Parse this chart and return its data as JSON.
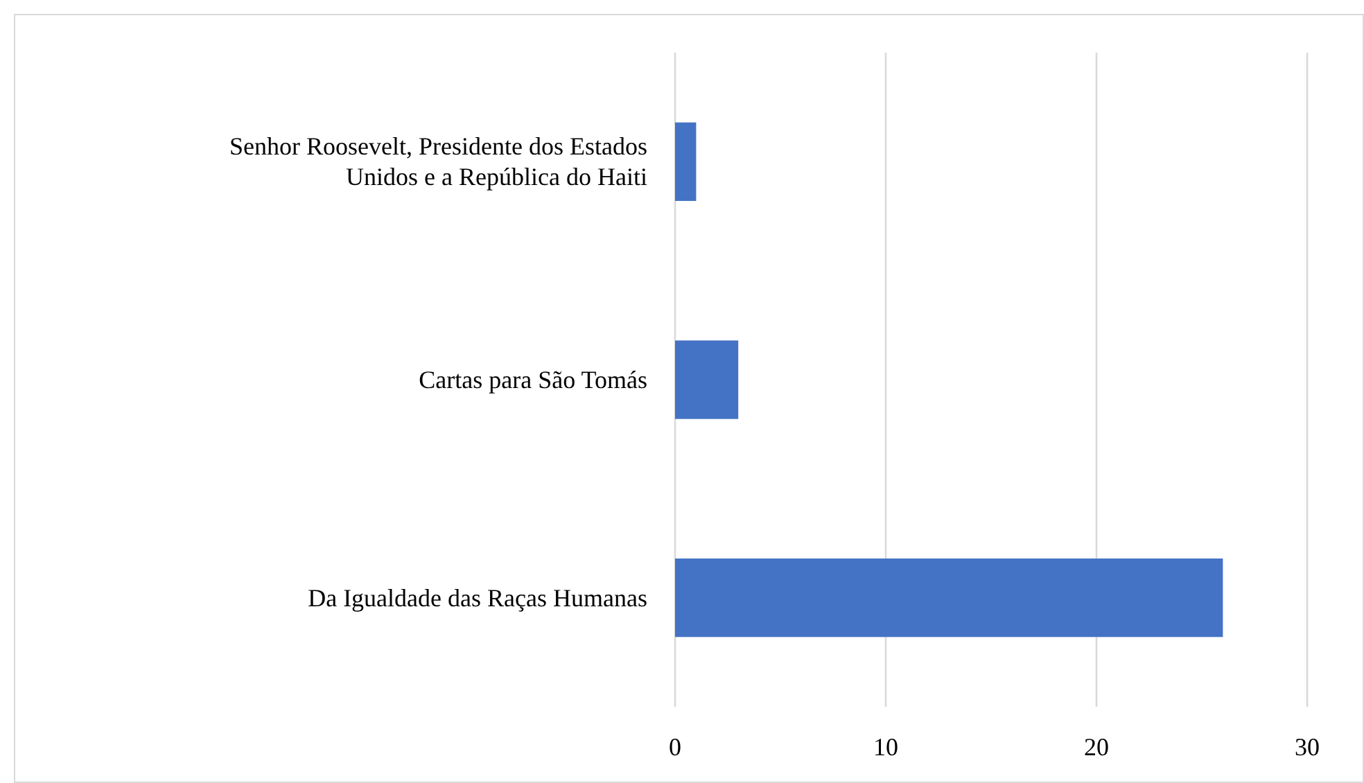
{
  "chart_data": {
    "type": "bar",
    "orientation": "horizontal",
    "categories": [
      "Senhor Roosevelt, Presidente dos Estados Unidos e a República do Haiti",
      "Cartas para São Tomás",
      "Da Igualdade das Raças Humanas"
    ],
    "values": [
      1,
      3,
      26
    ],
    "color": "#4472c4",
    "xlim": [
      0,
      30
    ],
    "xticks": [
      0,
      10,
      20,
      30
    ],
    "grid": "x"
  }
}
